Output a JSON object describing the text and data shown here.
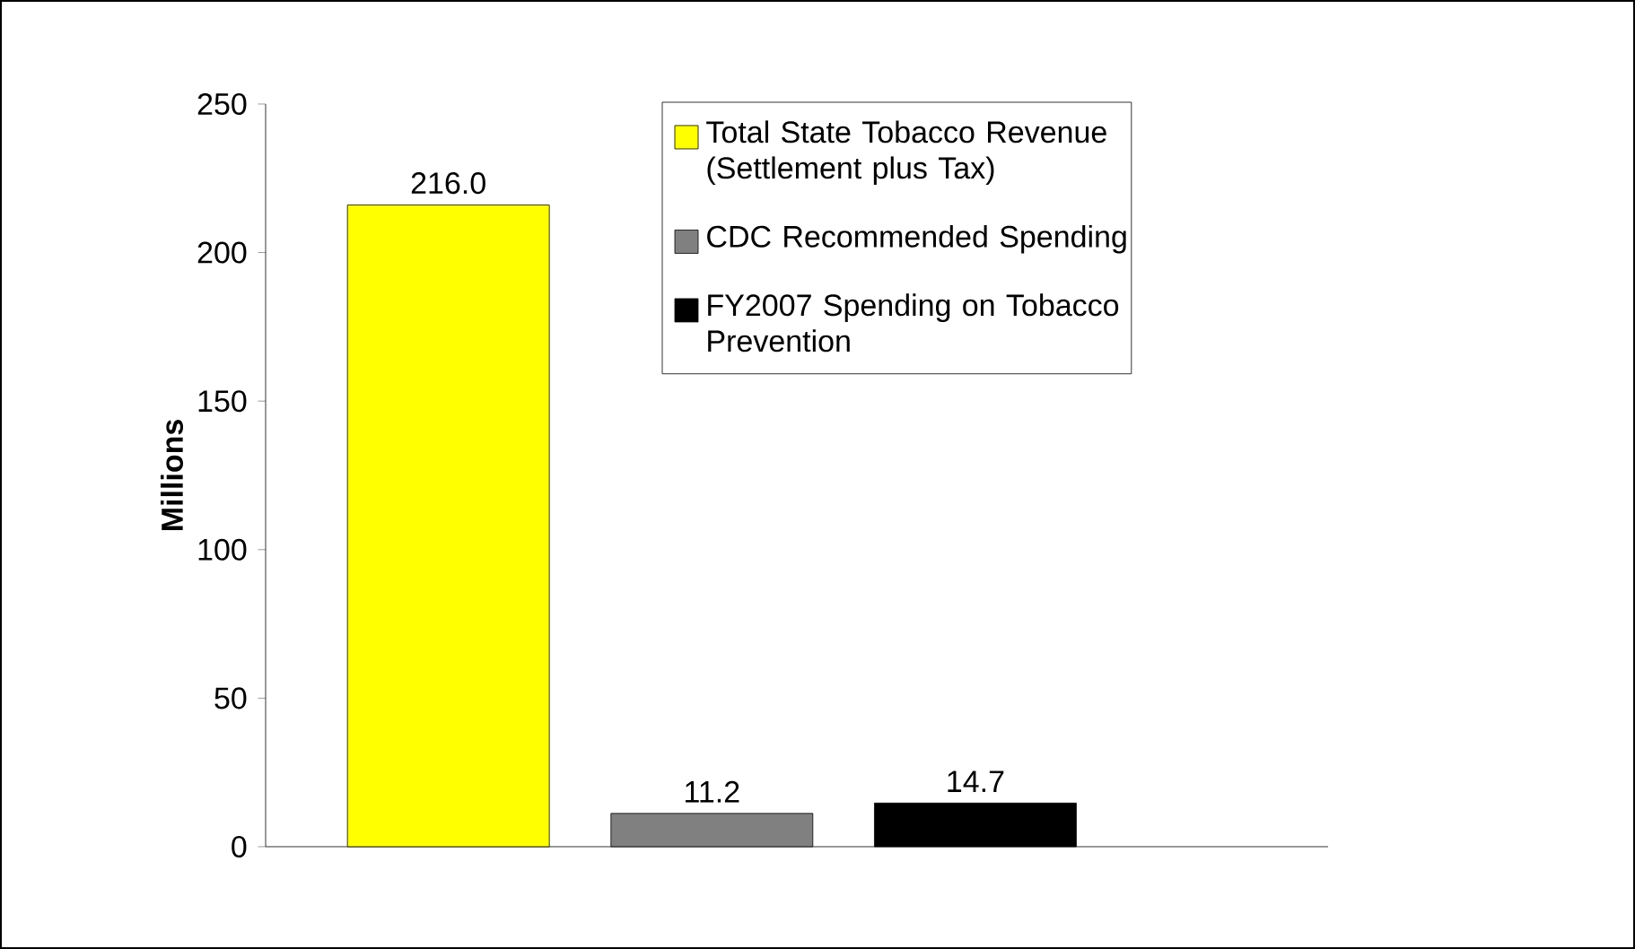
{
  "chart_data": {
    "type": "bar",
    "ylabel": "Millions",
    "categories": [
      null
    ],
    "series": [
      {
        "name": "Total State Tobacco Revenue (Settlement plus Tax)",
        "color": "#ffff00",
        "values": [
          216.0
        ],
        "value_labels": [
          "216.0"
        ]
      },
      {
        "name": "CDC Recommended Spending",
        "color": "#808080",
        "values": [
          11.2
        ],
        "value_labels": [
          "11.2"
        ]
      },
      {
        "name": "FY2007 Spending on Tobacco Prevention",
        "color": "#000000",
        "values": [
          14.7
        ],
        "value_labels": [
          "14.7"
        ]
      }
    ],
    "ylim": [
      0,
      250
    ],
    "yticks": [
      0,
      50,
      100,
      150,
      200,
      250
    ],
    "grid": false,
    "legend": "top right"
  }
}
